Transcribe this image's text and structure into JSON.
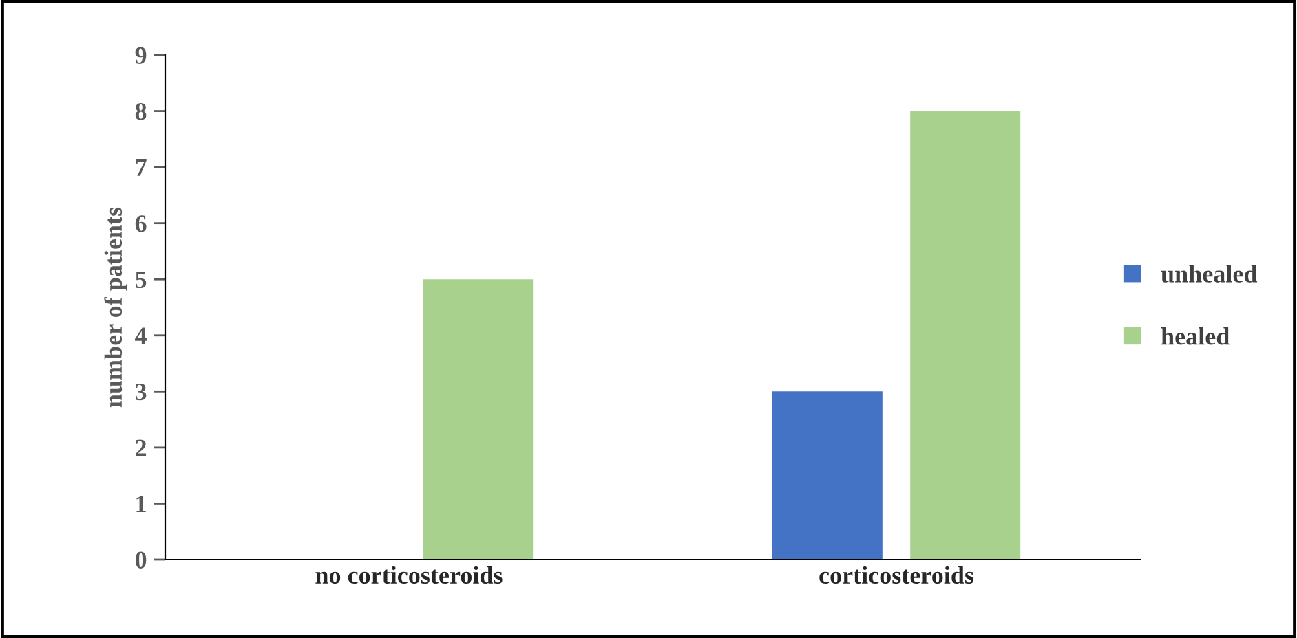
{
  "chart_data": {
    "type": "bar",
    "ylabel": "number of patients",
    "categories": [
      "no corticosteroids",
      "corticosteroids"
    ],
    "series": [
      {
        "name": "unhealed",
        "color": "#4472c4",
        "values": [
          0,
          3
        ]
      },
      {
        "name": "healed",
        "color": "#a9d18e",
        "values": [
          5,
          8
        ]
      }
    ],
    "ylim": [
      0,
      9
    ],
    "yticks": [
      0,
      1,
      2,
      3,
      4,
      5,
      6,
      7,
      8,
      9
    ],
    "grid": false,
    "legend": "right"
  }
}
